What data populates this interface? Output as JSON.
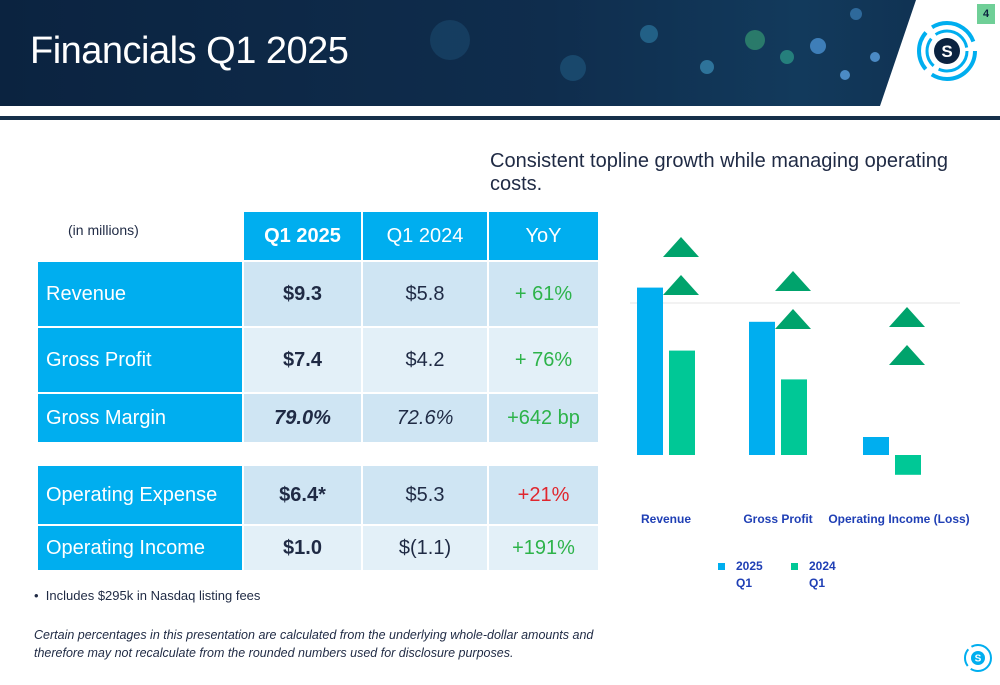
{
  "slide": {
    "page_number": "4",
    "title": "Financials Q1 2025",
    "subtitle": "Consistent topline growth while managing operating costs.",
    "logo_icon": "company-s-logo-icon"
  },
  "table": {
    "unit_label": "(in millions)",
    "columns": [
      "Q1 2025",
      "Q1 2024",
      "YoY"
    ],
    "rows": [
      {
        "label": "Revenue",
        "q1_2025": "$9.3",
        "q1_2024": "$5.8",
        "yoy": "+ 61%"
      },
      {
        "label": "Gross Profit",
        "q1_2025": "$7.4",
        "q1_2024": "$4.2",
        "yoy": "+ 76%"
      },
      {
        "label": "Gross Margin",
        "q1_2025": "79.0%",
        "q1_2024": "72.6%",
        "yoy": "+642 bp"
      },
      {
        "label": "Operating Expense",
        "q1_2025": "$6.4*",
        "q1_2024": "$5.3",
        "yoy": "+21%"
      },
      {
        "label": "Operating Income",
        "q1_2025": "$1.0",
        "q1_2024": "$(1.1)",
        "yoy": "+191%"
      }
    ]
  },
  "footnote": "Includes $295k in Nasdaq listing fees",
  "disclaimer": "Certain percentages in this presentation are calculated from the underlying whole-dollar amounts and therefore may not recalculate from the rounded numbers used for disclosure purposes.",
  "colors": {
    "accent_blue": "#00aeef",
    "accent_green": "#00c896",
    "header_navy": "#0b2340",
    "positive_green": "#2db34a",
    "negative_red": "#e0262e"
  },
  "chart_data": {
    "type": "bar",
    "categories": [
      "Revenue",
      "Gross Profit",
      "Operating Income (Loss)"
    ],
    "series": [
      {
        "name": "2025 Q1",
        "values": [
          9.3,
          7.4,
          1.0
        ],
        "color": "#00aeef"
      },
      {
        "name": "2024 Q1",
        "values": [
          5.8,
          4.2,
          -1.1
        ],
        "color": "#00c896"
      }
    ],
    "legend": [
      "2025",
      "Q1",
      "2024",
      "Q1"
    ],
    "increase_markers": [
      2,
      2,
      2
    ],
    "ylim": [
      -2,
      12
    ],
    "grid": false,
    "legend_position": "bottom"
  }
}
